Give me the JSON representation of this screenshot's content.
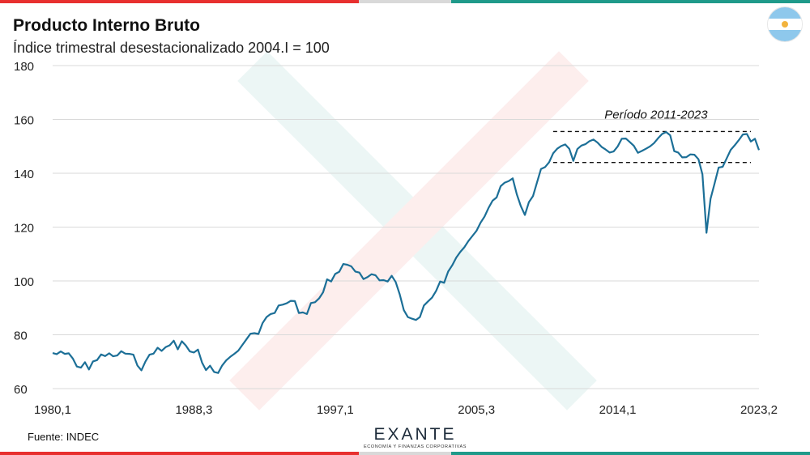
{
  "title": "Producto Interno Bruto",
  "subtitle": "Índice trimestral desestacionalizado 2004.I = 100",
  "source": "Fuente: INDEC",
  "logo": {
    "name": "EXANTE",
    "tagline": "ECONOMÍA Y FINANZAS CORPORATIVAS"
  },
  "flag_icon": "argentina-flag-icon",
  "colors": {
    "line": "#1c6f97",
    "accent_red": "#e8302f",
    "accent_teal": "#1f9a8a",
    "grid": "#d9d9d9"
  },
  "chart_data": {
    "type": "line",
    "title": "Producto Interno Bruto",
    "subtitle": "Índice trimestral desestacionalizado 2004.I = 100",
    "xlabel": "",
    "ylabel": "",
    "ylim": [
      60,
      180
    ],
    "yticks": [
      60,
      80,
      100,
      120,
      140,
      160,
      180
    ],
    "xtick_labels": [
      "1980,1",
      "1988,3",
      "1997,1",
      "2005,3",
      "2014,1",
      "2023,2"
    ],
    "grid": "horizontal",
    "annotation": {
      "text": "Período 2011-2023",
      "upper": 155.5,
      "lower": 144.0,
      "start_quarter_index": 124,
      "end_quarter_index": 173
    },
    "series": [
      {
        "x_start": "1980,1",
        "frequency": "quarterly",
        "values": [
          73.2,
          72.8,
          73.8,
          72.9,
          73.1,
          71.2,
          68.2,
          67.8,
          69.8,
          67.1,
          70.1,
          70.6,
          72.7,
          72.1,
          73.1,
          72.0,
          72.3,
          73.9,
          73.0,
          72.9,
          72.6,
          68.6,
          66.8,
          70.1,
          72.6,
          73.0,
          75.2,
          74.0,
          75.4,
          76.1,
          77.8,
          74.6,
          77.6,
          76.0,
          73.8,
          73.4,
          74.5,
          69.7,
          66.9,
          68.5,
          66.2,
          65.8,
          68.6,
          70.5,
          71.8,
          72.9,
          74.1,
          76.2,
          78.3,
          80.4,
          80.6,
          80.3,
          84.3,
          86.6,
          87.7,
          88.1,
          90.9,
          91.2,
          91.7,
          92.6,
          92.5,
          88.1,
          88.3,
          87.7,
          91.8,
          92.1,
          93.5,
          95.8,
          100.6,
          99.8,
          102.6,
          103.4,
          106.3,
          106.0,
          105.4,
          103.5,
          103.1,
          100.7,
          101.4,
          102.5,
          102.1,
          100.2,
          100.3,
          99.8,
          101.9,
          99.6,
          95.0,
          89.2,
          86.6,
          86.0,
          85.5,
          86.6,
          90.9,
          92.4,
          93.8,
          96.3,
          99.8,
          99.3,
          103.5,
          105.8,
          108.7,
          110.8,
          112.5,
          114.8,
          116.7,
          118.6,
          121.6,
          123.9,
          127.1,
          129.8,
          131.0,
          135.2,
          136.5,
          137.1,
          138.1,
          132.2,
          127.8,
          124.5,
          129.3,
          131.5,
          136.5,
          141.6,
          142.3,
          144.1,
          147.4,
          149.1,
          150.1,
          150.7,
          149.1,
          144.6,
          149.0,
          150.3,
          150.8,
          151.9,
          152.5,
          151.4,
          149.8,
          148.8,
          147.7,
          148.1,
          150.0,
          152.8,
          152.9,
          151.6,
          150.2,
          147.6,
          148.3,
          149.1,
          150.0,
          151.2,
          153.0,
          154.6,
          155.3,
          154.1,
          148.2,
          147.7,
          145.9,
          146.0,
          147.0,
          146.9,
          145.2,
          139.6,
          117.9,
          130.5,
          136.2,
          142.1,
          142.4,
          145.5,
          148.7,
          150.4,
          152.3,
          154.4,
          154.6,
          151.8,
          152.8,
          148.6
        ]
      }
    ]
  }
}
